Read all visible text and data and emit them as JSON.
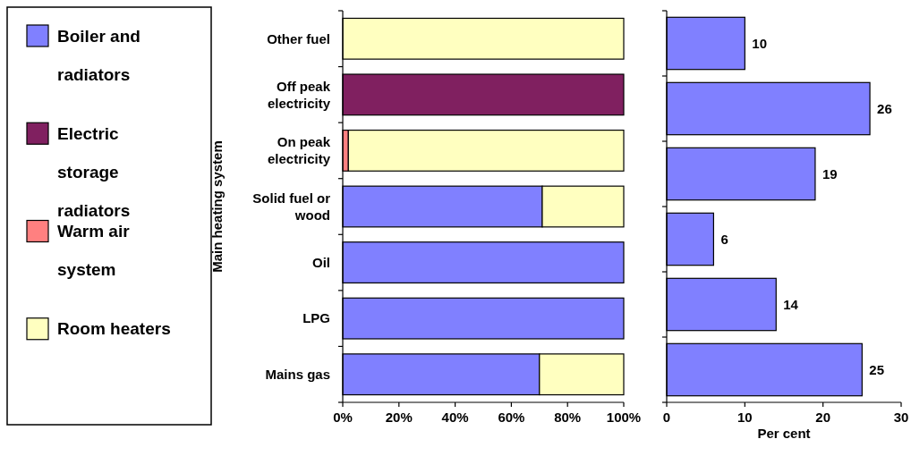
{
  "chart_data": [
    {
      "type": "bar",
      "orientation": "horizontal",
      "stacked": true,
      "ylabel": "Main heating system",
      "legend": "left",
      "categories": [
        "Other fuel",
        "Off peak electricity",
        "On peak electricity",
        "Solid fuel or wood",
        "Oil",
        "LPG",
        "Mains gas"
      ],
      "series": [
        {
          "name": "Boiler and radiators",
          "color": "#8080ff",
          "values": [
            0,
            0,
            0,
            71,
            100,
            100,
            70
          ]
        },
        {
          "name": "Electric storage radiators",
          "color": "#802060",
          "values": [
            0,
            100,
            0,
            0,
            0,
            0,
            0
          ]
        },
        {
          "name": "Warm air system",
          "color": "#ff8080",
          "values": [
            0,
            0,
            2,
            0,
            0,
            0,
            0
          ]
        },
        {
          "name": "Room heaters",
          "color": "#ffffc0",
          "values": [
            100,
            0,
            98,
            29,
            0,
            0,
            30
          ]
        }
      ],
      "xlim": [
        0,
        100
      ],
      "xticks": [
        {
          "value": 0,
          "label": "0%"
        },
        {
          "value": 20,
          "label": "20%"
        },
        {
          "value": 40,
          "label": "40%"
        },
        {
          "value": 60,
          "label": "60%"
        },
        {
          "value": 80,
          "label": "80%"
        },
        {
          "value": 100,
          "label": "100%"
        }
      ]
    },
    {
      "type": "bar",
      "orientation": "horizontal",
      "xlabel": "Per cent",
      "categories": [
        null,
        null,
        null,
        null,
        null,
        null
      ],
      "values": [
        10,
        26,
        19,
        6,
        14,
        25
      ],
      "color": "#8080ff",
      "data_labels": true,
      "xlim": [
        0,
        30
      ],
      "xticks": [
        0,
        10,
        20,
        30
      ],
      "tick_labels": "x"
    }
  ]
}
